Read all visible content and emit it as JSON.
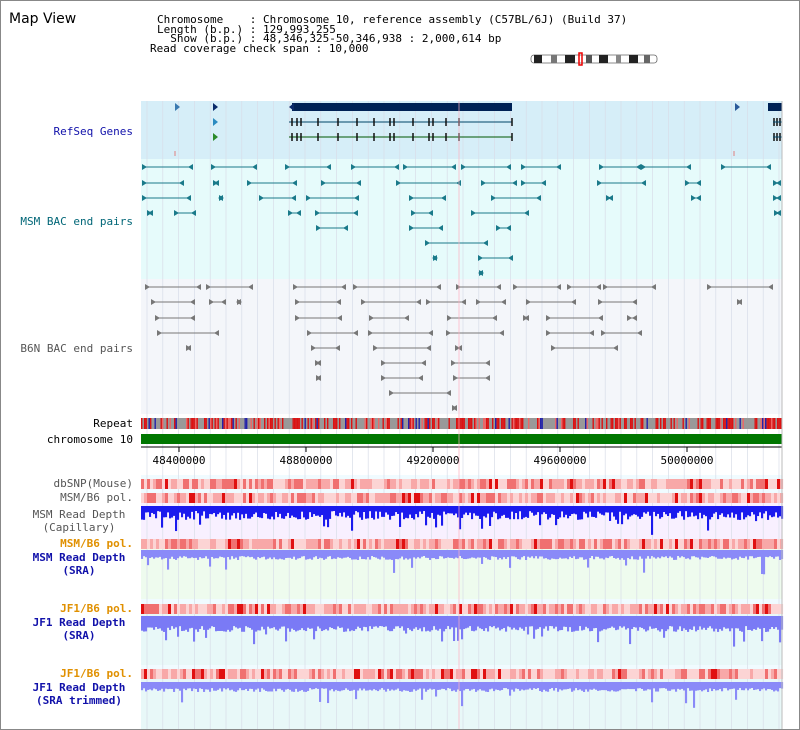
{
  "view_title": "Map View",
  "info": {
    "chromosome_label": "Chromosome    : ",
    "chromosome_value": "Chromosome 10, reference assembly (C57BL/6J) (Build 37)",
    "length_label": "Length (b.p.) : ",
    "length_value": "129,993,255",
    "show_label": "  Show (b.p.) : ",
    "show_value": "48,346,325-50,346,938 : 2,000,614 bp",
    "coverage_label": "Read coverage check span : ",
    "coverage_value": "10,000"
  },
  "tracks": {
    "refseq": "RefSeq Genes",
    "msm_bac": "MSM BAC end pairs",
    "b6n_bac": "B6N BAC end pairs",
    "repeat": "Repeat",
    "chromosome": "chromosome 10",
    "dbsnp": "dbSNP(Mouse)",
    "msm_b6_pol": "MSM/B6 pol.",
    "msm_depth_cap_1": "MSM Read Depth",
    "msm_depth_cap_2": "(Capillary)",
    "msm_b6_pol_2": "MSM/B6 pol.",
    "msm_depth_sra_1": "MSM Read Depth",
    "msm_depth_sra_2": "(SRA)",
    "jf1_b6_pol": "JF1/B6 pol.",
    "jf1_depth_sra_1": "JF1 Read Depth",
    "jf1_depth_sra_2": "(SRA)",
    "jf1_b6_pol_2": "JF1/B6 pol.",
    "jf1_depth_trim_1": "JF1 Read Depth",
    "jf1_depth_trim_2": "(SRA trimmed)"
  },
  "axis_ticks": [
    "48400000",
    "48800000",
    "49200000",
    "49600000",
    "50000000"
  ],
  "colors": {
    "refseq_bg": "#d6eef8",
    "bac_bg": "#e6fbfb",
    "b6n_bg": "#f4f6fa",
    "chromosome_bar": "#007700",
    "gene_block": "#002255",
    "depth_blue": "#2222ee",
    "depth_light": "#8888ff"
  }
}
